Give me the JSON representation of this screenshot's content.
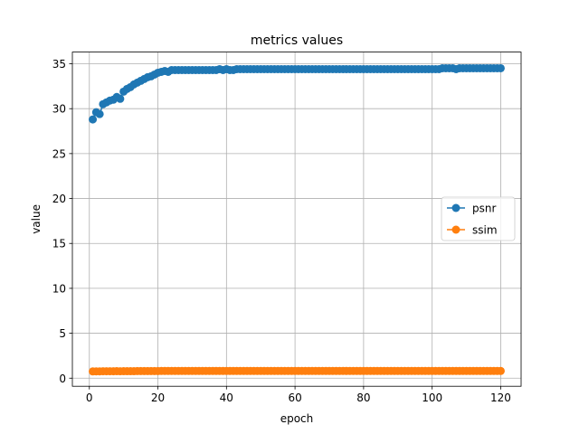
{
  "chart_data": {
    "type": "line",
    "title": "metrics values",
    "xlabel": "epoch",
    "ylabel": "value",
    "xlim": [
      -4.95,
      125.95
    ],
    "ylim": [
      -0.9,
      36.3
    ],
    "xticks": [
      0,
      20,
      40,
      60,
      80,
      100,
      120
    ],
    "yticks": [
      0,
      5,
      10,
      15,
      20,
      25,
      30,
      35
    ],
    "grid": true,
    "legend_position": "center-right",
    "series": [
      {
        "name": "psnr",
        "color": "#1f77b4",
        "marker": "circle",
        "x": [
          1,
          2,
          3,
          4,
          5,
          6,
          7,
          8,
          9,
          10,
          11,
          12,
          13,
          14,
          15,
          16,
          17,
          18,
          19,
          20,
          21,
          22,
          23,
          24,
          25,
          26,
          27,
          28,
          29,
          30,
          31,
          32,
          33,
          34,
          35,
          36,
          37,
          38,
          39,
          40,
          41,
          42,
          43,
          44,
          45,
          46,
          47,
          48,
          49,
          50,
          51,
          52,
          53,
          54,
          55,
          56,
          57,
          58,
          59,
          60,
          61,
          62,
          63,
          64,
          65,
          66,
          67,
          68,
          69,
          70,
          71,
          72,
          73,
          74,
          75,
          76,
          77,
          78,
          79,
          80,
          81,
          82,
          83,
          84,
          85,
          86,
          87,
          88,
          89,
          90,
          91,
          92,
          93,
          94,
          95,
          96,
          97,
          98,
          99,
          100,
          101,
          102,
          103,
          104,
          105,
          106,
          107,
          108,
          109,
          110,
          111,
          112,
          113,
          114,
          115,
          116,
          117,
          118,
          119,
          120
        ],
        "y": [
          28.8,
          29.6,
          29.4,
          30.5,
          30.7,
          30.9,
          31.0,
          31.3,
          31.1,
          31.9,
          32.2,
          32.4,
          32.7,
          32.9,
          33.1,
          33.3,
          33.5,
          33.6,
          33.8,
          34.0,
          34.1,
          34.2,
          34.1,
          34.3,
          34.3,
          34.3,
          34.3,
          34.3,
          34.3,
          34.3,
          34.3,
          34.3,
          34.3,
          34.3,
          34.3,
          34.3,
          34.3,
          34.4,
          34.3,
          34.4,
          34.3,
          34.3,
          34.4,
          34.4,
          34.4,
          34.4,
          34.4,
          34.4,
          34.4,
          34.4,
          34.4,
          34.4,
          34.4,
          34.4,
          34.4,
          34.4,
          34.4,
          34.4,
          34.4,
          34.4,
          34.4,
          34.4,
          34.4,
          34.4,
          34.4,
          34.4,
          34.4,
          34.4,
          34.4,
          34.4,
          34.4,
          34.4,
          34.4,
          34.4,
          34.4,
          34.4,
          34.4,
          34.4,
          34.4,
          34.4,
          34.4,
          34.4,
          34.4,
          34.4,
          34.4,
          34.4,
          34.4,
          34.4,
          34.4,
          34.4,
          34.4,
          34.4,
          34.4,
          34.4,
          34.4,
          34.4,
          34.4,
          34.4,
          34.4,
          34.4,
          34.4,
          34.4,
          34.5,
          34.5,
          34.5,
          34.5,
          34.4,
          34.5,
          34.5,
          34.5,
          34.5,
          34.5,
          34.5,
          34.5,
          34.5,
          34.5,
          34.5,
          34.5,
          34.5,
          34.5
        ]
      },
      {
        "name": "ssim",
        "color": "#ff7f0e",
        "marker": "circle",
        "x": [
          1,
          2,
          3,
          4,
          5,
          6,
          7,
          8,
          9,
          10,
          11,
          12,
          13,
          14,
          15,
          16,
          17,
          18,
          19,
          20,
          21,
          22,
          23,
          24,
          25,
          26,
          27,
          28,
          29,
          30,
          31,
          32,
          33,
          34,
          35,
          36,
          37,
          38,
          39,
          40,
          41,
          42,
          43,
          44,
          45,
          46,
          47,
          48,
          49,
          50,
          51,
          52,
          53,
          54,
          55,
          56,
          57,
          58,
          59,
          60,
          61,
          62,
          63,
          64,
          65,
          66,
          67,
          68,
          69,
          70,
          71,
          72,
          73,
          74,
          75,
          76,
          77,
          78,
          79,
          80,
          81,
          82,
          83,
          84,
          85,
          86,
          87,
          88,
          89,
          90,
          91,
          92,
          93,
          94,
          95,
          96,
          97,
          98,
          99,
          100,
          101,
          102,
          103,
          104,
          105,
          106,
          107,
          108,
          109,
          110,
          111,
          112,
          113,
          114,
          115,
          116,
          117,
          118,
          119,
          120
        ],
        "y": [
          0.75,
          0.76,
          0.76,
          0.77,
          0.77,
          0.77,
          0.77,
          0.78,
          0.77,
          0.78,
          0.78,
          0.78,
          0.78,
          0.79,
          0.79,
          0.79,
          0.79,
          0.79,
          0.79,
          0.79,
          0.8,
          0.8,
          0.8,
          0.8,
          0.8,
          0.8,
          0.8,
          0.8,
          0.8,
          0.8,
          0.8,
          0.8,
          0.8,
          0.8,
          0.8,
          0.8,
          0.8,
          0.8,
          0.8,
          0.8,
          0.8,
          0.8,
          0.8,
          0.8,
          0.8,
          0.8,
          0.8,
          0.8,
          0.8,
          0.8,
          0.8,
          0.8,
          0.8,
          0.8,
          0.8,
          0.8,
          0.8,
          0.8,
          0.8,
          0.8,
          0.8,
          0.8,
          0.8,
          0.8,
          0.8,
          0.8,
          0.8,
          0.8,
          0.8,
          0.8,
          0.8,
          0.8,
          0.8,
          0.8,
          0.8,
          0.8,
          0.8,
          0.8,
          0.8,
          0.8,
          0.8,
          0.8,
          0.8,
          0.8,
          0.8,
          0.8,
          0.8,
          0.8,
          0.8,
          0.8,
          0.8,
          0.8,
          0.8,
          0.8,
          0.8,
          0.8,
          0.8,
          0.8,
          0.8,
          0.8,
          0.8,
          0.8,
          0.8,
          0.8,
          0.8,
          0.8,
          0.8,
          0.8,
          0.8,
          0.8,
          0.8,
          0.8,
          0.8,
          0.8,
          0.8,
          0.8,
          0.8,
          0.8,
          0.8,
          0.8
        ]
      }
    ]
  }
}
